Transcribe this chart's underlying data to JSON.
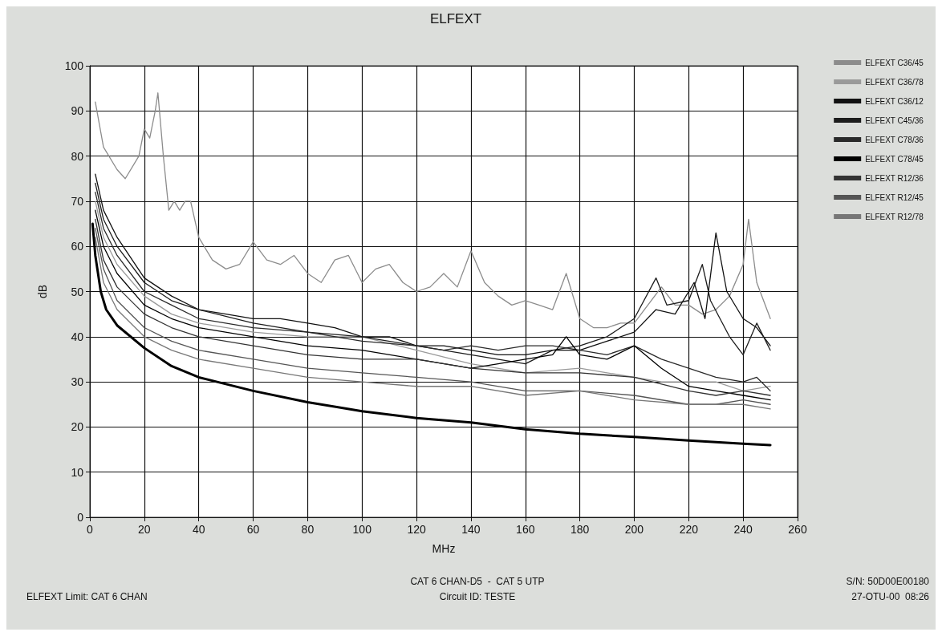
{
  "chart_data": {
    "type": "line",
    "title": "ELFEXT",
    "xlabel": "MHz",
    "ylabel": "dB",
    "xlim": [
      0,
      260
    ],
    "xticks": [
      0,
      20,
      40,
      60,
      80,
      100,
      120,
      140,
      160,
      180,
      200,
      220,
      240,
      260
    ],
    "ylim": [
      0,
      100
    ],
    "yticks": [
      0,
      10,
      20,
      30,
      40,
      50,
      60,
      70,
      80,
      90,
      100
    ],
    "grid": true,
    "legend": "right",
    "marker": "none",
    "line_style": "solid",
    "annotations": [
      "ELFEXT Limit: CAT 6 CHAN",
      "CAT 6 CHAN-D5  -  CAT 5 UTP",
      "Circuit ID: TESTE",
      "S/N: 50D00E00180",
      "27-OTU-00  08:26"
    ],
    "series": [
      {
        "name": "ELFEXT C36/45",
        "color": "#8c8c8c",
        "x": [
          2,
          5,
          10,
          13,
          18,
          20,
          22,
          24,
          25,
          27,
          29,
          31,
          33,
          35,
          37,
          40,
          45,
          50,
          55,
          60,
          65,
          70,
          75,
          80,
          85,
          90,
          95,
          100,
          105,
          110,
          115,
          120,
          125,
          130,
          135,
          140,
          145,
          150,
          155,
          160,
          165,
          170,
          175,
          180,
          185,
          190,
          195,
          200,
          205,
          210,
          215,
          220,
          225,
          230,
          235,
          240,
          242,
          245,
          250
        ],
        "values": [
          92,
          82,
          77,
          75,
          80,
          86,
          84,
          90,
          94,
          80,
          68,
          70,
          68,
          70,
          70,
          62,
          57,
          55,
          56,
          61,
          57,
          56,
          58,
          54,
          52,
          57,
          58,
          52,
          55,
          56,
          52,
          50,
          51,
          54,
          51,
          59,
          52,
          49,
          47,
          48,
          47,
          46,
          54,
          44,
          42,
          42,
          43,
          43,
          47,
          51,
          47,
          47,
          45,
          46,
          49,
          56,
          66,
          52,
          44
        ]
      },
      {
        "name": "ELFEXT C36/78",
        "color": "#9a9a9a",
        "x": [
          2,
          5,
          10,
          20,
          30,
          40,
          60,
          80,
          100,
          120,
          140,
          160,
          180,
          190,
          200,
          210,
          220,
          230,
          240,
          250
        ],
        "values": [
          70,
          62,
          56,
          49,
          45,
          43,
          41,
          40,
          40,
          37,
          34,
          32,
          33,
          32,
          31,
          30,
          30,
          30,
          28,
          29
        ]
      },
      {
        "name": "ELFEXT C36/12",
        "color": "#111111",
        "x": [
          2,
          5,
          10,
          20,
          30,
          40,
          50,
          60,
          70,
          80,
          90,
          100,
          110,
          120,
          130,
          140,
          150,
          160,
          170,
          180,
          190,
          200,
          208,
          215,
          222,
          226,
          230,
          234,
          240,
          245,
          250
        ],
        "values": [
          76,
          68,
          62,
          53,
          49,
          46,
          45,
          44,
          44,
          43,
          42,
          40,
          40,
          38,
          38,
          37,
          36,
          36,
          37,
          37,
          39,
          41,
          46,
          45,
          52,
          44,
          63,
          50,
          44,
          42,
          38
        ]
      },
      {
        "name": "ELFEXT C45/36",
        "color": "#1c1c1c",
        "x": [
          2,
          5,
          10,
          20,
          30,
          40,
          60,
          80,
          100,
          120,
          140,
          160,
          170,
          180,
          190,
          200,
          208,
          212,
          220,
          225,
          228,
          235,
          240,
          245,
          250
        ],
        "values": [
          74,
          66,
          60,
          52,
          48,
          46,
          43,
          41,
          40,
          38,
          36,
          34,
          37,
          38,
          40,
          44,
          53,
          47,
          48,
          56,
          48,
          40,
          36,
          43,
          37
        ]
      },
      {
        "name": "ELFEXT C78/36",
        "color": "#2a2a2a",
        "x": [
          2,
          5,
          10,
          20,
          30,
          40,
          60,
          80,
          100,
          120,
          130,
          140,
          150,
          160,
          170,
          180,
          190,
          200,
          210,
          220,
          230,
          240,
          245,
          250
        ],
        "values": [
          72,
          64,
          58,
          50,
          47,
          44,
          42,
          41,
          39,
          38,
          37,
          38,
          37,
          38,
          38,
          37,
          36,
          38,
          35,
          33,
          31,
          30,
          31,
          28
        ]
      },
      {
        "name": "ELFEXT C78/45",
        "color": "#000000",
        "x": [
          2,
          5,
          10,
          20,
          30,
          40,
          60,
          80,
          100,
          120,
          140,
          150,
          160,
          170,
          175,
          180,
          190,
          200,
          210,
          220,
          230,
          240,
          250
        ],
        "values": [
          68,
          60,
          54,
          47,
          44,
          42,
          40,
          38,
          37,
          35,
          33,
          34,
          35,
          36,
          40,
          36,
          35,
          38,
          33,
          29,
          28,
          27,
          26
        ]
      },
      {
        "name": "ELFEXT R12/36",
        "color": "#333333",
        "x": [
          2,
          5,
          10,
          20,
          30,
          40,
          60,
          80,
          100,
          120,
          140,
          160,
          180,
          200,
          220,
          230,
          240,
          250
        ],
        "values": [
          66,
          57,
          51,
          45,
          42,
          40,
          38,
          36,
          35,
          35,
          33,
          32,
          32,
          31,
          28,
          27,
          28,
          27
        ]
      },
      {
        "name": "ELFEXT R12/45",
        "color": "#555555",
        "x": [
          2,
          5,
          10,
          20,
          30,
          40,
          60,
          80,
          100,
          120,
          140,
          160,
          180,
          200,
          220,
          230,
          240,
          250
        ],
        "values": [
          64,
          55,
          48,
          42,
          39,
          37,
          35,
          33,
          32,
          31,
          30,
          28,
          28,
          27,
          25,
          25,
          26,
          25
        ]
      },
      {
        "name": "ELFEXT R12/78",
        "color": "#777777",
        "x": [
          2,
          5,
          10,
          20,
          30,
          40,
          60,
          80,
          100,
          120,
          140,
          160,
          180,
          200,
          220,
          240,
          250
        ],
        "values": [
          62,
          52,
          46,
          40,
          37,
          35,
          33,
          31,
          30,
          29,
          29,
          27,
          28,
          26,
          25,
          25,
          24
        ]
      },
      {
        "color": "#000000",
        "x": [
          1,
          2,
          4,
          6,
          10,
          20,
          30,
          40,
          60,
          80,
          100,
          120,
          140,
          160,
          180,
          200,
          220,
          240,
          250
        ],
        "values": [
          65,
          58,
          50,
          46,
          42.5,
          37.5,
          33.5,
          31,
          28,
          25.5,
          23.5,
          22,
          21,
          19.5,
          18.5,
          17.8,
          17,
          16.3,
          16
        ]
      }
    ]
  }
}
